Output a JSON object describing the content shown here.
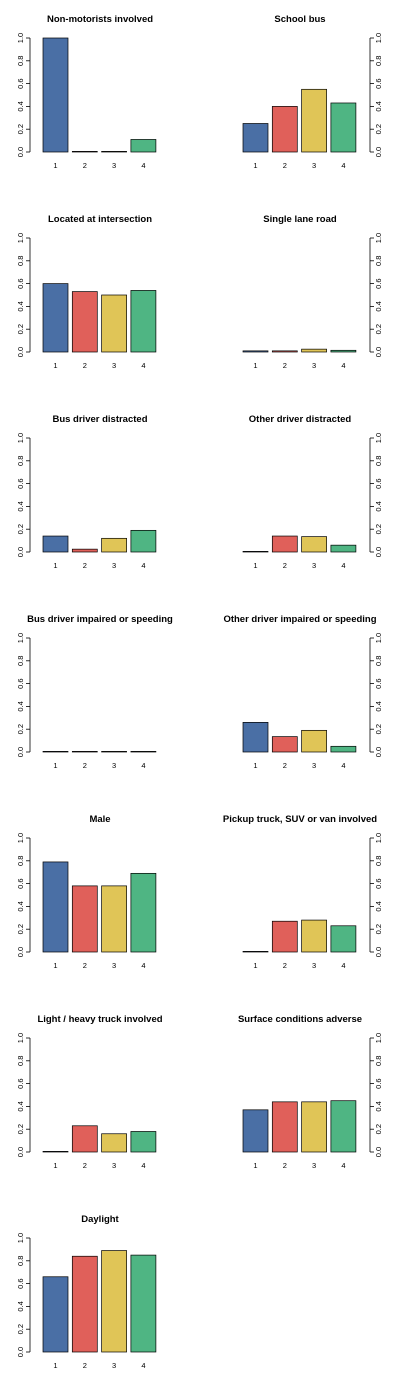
{
  "colors": {
    "c1": "#4a6fa5",
    "c2": "#e0605a",
    "c3": "#e0c557",
    "c4": "#4fb583"
  },
  "chart_data": [
    {
      "type": "bar",
      "title": "Non-motorists involved",
      "categories": [
        "1",
        "2",
        "3",
        "4"
      ],
      "values": [
        1.0,
        0.005,
        0.005,
        0.11
      ],
      "ylim": [
        0,
        1
      ],
      "yticks": [
        "0.0",
        "0.2",
        "0.4",
        "0.6",
        "0.8",
        "1.0"
      ],
      "axis_side": "left"
    },
    {
      "type": "bar",
      "title": "School bus",
      "categories": [
        "1",
        "2",
        "3",
        "4"
      ],
      "values": [
        0.25,
        0.4,
        0.55,
        0.43
      ],
      "ylim": [
        0,
        1
      ],
      "yticks": [
        "0.0",
        "0.2",
        "0.4",
        "0.6",
        "0.8",
        "1.0"
      ],
      "axis_side": "right"
    },
    {
      "type": "bar",
      "title": "Located at intersection",
      "categories": [
        "1",
        "2",
        "3",
        "4"
      ],
      "values": [
        0.6,
        0.53,
        0.5,
        0.54
      ],
      "ylim": [
        0,
        1
      ],
      "yticks": [
        "0.0",
        "0.2",
        "0.4",
        "0.6",
        "0.8",
        "1.0"
      ],
      "axis_side": "left"
    },
    {
      "type": "bar",
      "title": "Single lane road",
      "categories": [
        "1",
        "2",
        "3",
        "4"
      ],
      "values": [
        0.01,
        0.01,
        0.025,
        0.015
      ],
      "ylim": [
        0,
        1
      ],
      "yticks": [
        "0.0",
        "0.2",
        "0.4",
        "0.6",
        "0.8",
        "1.0"
      ],
      "axis_side": "right"
    },
    {
      "type": "bar",
      "title": "Bus driver distracted",
      "categories": [
        "1",
        "2",
        "3",
        "4"
      ],
      "values": [
        0.14,
        0.025,
        0.12,
        0.19
      ],
      "ylim": [
        0,
        1
      ],
      "yticks": [
        "0.0",
        "0.2",
        "0.4",
        "0.6",
        "0.8",
        "1.0"
      ],
      "axis_side": "left"
    },
    {
      "type": "bar",
      "title": "Other driver distracted",
      "categories": [
        "1",
        "2",
        "3",
        "4"
      ],
      "values": [
        0.0,
        0.14,
        0.135,
        0.06
      ],
      "ylim": [
        0,
        1
      ],
      "yticks": [
        "0.0",
        "0.2",
        "0.4",
        "0.6",
        "0.8",
        "1.0"
      ],
      "axis_side": "right"
    },
    {
      "type": "bar",
      "title": "Bus driver impaired or speeding",
      "categories": [
        "1",
        "2",
        "3",
        "4"
      ],
      "values": [
        0.0,
        0.0,
        0.004,
        0.002
      ],
      "ylim": [
        0,
        1
      ],
      "yticks": [
        "0.0",
        "0.2",
        "0.4",
        "0.6",
        "0.8",
        "1.0"
      ],
      "axis_side": "left"
    },
    {
      "type": "bar",
      "title": "Other driver impaired or speeding",
      "categories": [
        "1",
        "2",
        "3",
        "4"
      ],
      "values": [
        0.26,
        0.135,
        0.19,
        0.05
      ],
      "ylim": [
        0,
        1
      ],
      "yticks": [
        "0.0",
        "0.2",
        "0.4",
        "0.6",
        "0.8",
        "1.0"
      ],
      "axis_side": "right"
    },
    {
      "type": "bar",
      "title": "Male",
      "categories": [
        "1",
        "2",
        "3",
        "4"
      ],
      "values": [
        0.79,
        0.58,
        0.58,
        0.69
      ],
      "ylim": [
        0,
        1
      ],
      "yticks": [
        "0.0",
        "0.2",
        "0.4",
        "0.6",
        "0.8",
        "1.0"
      ],
      "axis_side": "left"
    },
    {
      "type": "bar",
      "title": "Pickup truck, SUV or van involved",
      "categories": [
        "1",
        "2",
        "3",
        "4"
      ],
      "values": [
        0.0,
        0.27,
        0.28,
        0.23
      ],
      "ylim": [
        0,
        1
      ],
      "yticks": [
        "0.0",
        "0.2",
        "0.4",
        "0.6",
        "0.8",
        "1.0"
      ],
      "axis_side": "right"
    },
    {
      "type": "bar",
      "title": "Light / heavy truck involved",
      "categories": [
        "1",
        "2",
        "3",
        "4"
      ],
      "values": [
        0.0,
        0.23,
        0.16,
        0.18
      ],
      "ylim": [
        0,
        1
      ],
      "yticks": [
        "0.0",
        "0.2",
        "0.4",
        "0.6",
        "0.8",
        "1.0"
      ],
      "axis_side": "left"
    },
    {
      "type": "bar",
      "title": "Surface conditions adverse",
      "categories": [
        "1",
        "2",
        "3",
        "4"
      ],
      "values": [
        0.37,
        0.44,
        0.44,
        0.45
      ],
      "ylim": [
        0,
        1
      ],
      "yticks": [
        "0.0",
        "0.2",
        "0.4",
        "0.6",
        "0.8",
        "1.0"
      ],
      "axis_side": "right"
    },
    {
      "type": "bar",
      "title": "Daylight",
      "categories": [
        "1",
        "2",
        "3",
        "4"
      ],
      "values": [
        0.66,
        0.84,
        0.89,
        0.85
      ],
      "ylim": [
        0,
        1
      ],
      "yticks": [
        "0.0",
        "0.2",
        "0.4",
        "0.6",
        "0.8",
        "1.0"
      ],
      "axis_side": "left"
    }
  ]
}
